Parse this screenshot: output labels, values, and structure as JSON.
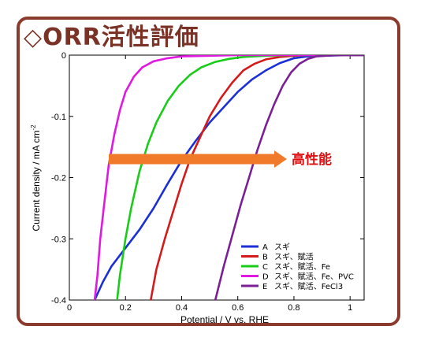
{
  "slide": {
    "title": "◇ORR活性評価",
    "frame_color": "#8b3a2e"
  },
  "chart_data": {
    "type": "line",
    "xlabel": "Potential / V vs. RHE",
    "ylabel": "Current density / mA cm",
    "ylabel_superscript": "-2",
    "xlim": [
      0,
      1.05
    ],
    "ylim": [
      -0.4,
      0
    ],
    "x_ticks": [
      0,
      0.2,
      0.4,
      0.6,
      0.8,
      1
    ],
    "x_tick_labels": [
      "0",
      "0.2",
      "0.4",
      "0.6",
      "0.8",
      "1"
    ],
    "y_ticks": [
      0,
      -0.1,
      -0.2,
      -0.3,
      -0.4
    ],
    "y_tick_labels": [
      "0",
      "-0.1",
      "-0.2",
      "-0.3",
      "-0.4"
    ],
    "grid": false,
    "legend_position": "bottom-right",
    "series": [
      {
        "name": "A",
        "label": "スギ",
        "color": "#1a2fd6",
        "x": [
          0.09,
          0.12,
          0.15,
          0.2,
          0.25,
          0.3,
          0.35,
          0.4,
          0.45,
          0.5,
          0.55,
          0.6,
          0.65,
          0.7,
          0.75,
          0.8,
          0.85,
          0.9,
          1.0,
          1.05
        ],
        "y": [
          -0.4,
          -0.37,
          -0.345,
          -0.315,
          -0.285,
          -0.25,
          -0.21,
          -0.172,
          -0.14,
          -0.11,
          -0.085,
          -0.06,
          -0.04,
          -0.025,
          -0.013,
          -0.005,
          -0.002,
          -0.001,
          0,
          0
        ]
      },
      {
        "name": "B",
        "label": "スギ、賦活",
        "color": "#d41a1a",
        "x": [
          0.29,
          0.31,
          0.34,
          0.37,
          0.4,
          0.43,
          0.47,
          0.5,
          0.54,
          0.58,
          0.62,
          0.66,
          0.7,
          0.75,
          0.8,
          0.85,
          0.9,
          1.0,
          1.05
        ],
        "y": [
          -0.4,
          -0.35,
          -0.3,
          -0.255,
          -0.21,
          -0.17,
          -0.13,
          -0.1,
          -0.07,
          -0.045,
          -0.025,
          -0.014,
          -0.007,
          -0.003,
          -0.001,
          0,
          0,
          0,
          0
        ]
      },
      {
        "name": "C",
        "label": "スギ、賦活、Fe",
        "color": "#18cc18",
        "x": [
          0.17,
          0.18,
          0.2,
          0.22,
          0.25,
          0.28,
          0.31,
          0.35,
          0.39,
          0.43,
          0.47,
          0.52,
          0.57,
          0.62,
          0.7,
          0.8,
          0.9,
          1.0,
          1.05
        ],
        "y": [
          -0.4,
          -0.36,
          -0.3,
          -0.25,
          -0.19,
          -0.145,
          -0.11,
          -0.075,
          -0.05,
          -0.032,
          -0.02,
          -0.011,
          -0.006,
          -0.003,
          -0.001,
          0,
          0,
          0,
          0
        ]
      },
      {
        "name": "D",
        "label": "スギ、賦活、Fe、PVC",
        "color": "#e018e0",
        "x": [
          0.09,
          0.1,
          0.11,
          0.125,
          0.14,
          0.16,
          0.18,
          0.2,
          0.23,
          0.26,
          0.3,
          0.35,
          0.4,
          0.5,
          0.6,
          0.8,
          1.0,
          1.05
        ],
        "y": [
          -0.4,
          -0.36,
          -0.3,
          -0.24,
          -0.18,
          -0.13,
          -0.09,
          -0.06,
          -0.035,
          -0.02,
          -0.01,
          -0.005,
          -0.002,
          -0.001,
          0,
          0,
          0,
          0
        ]
      },
      {
        "name": "E",
        "label": "スギ、賦活、FeCl3",
        "color": "#7a1f96",
        "x": [
          0.52,
          0.55,
          0.58,
          0.61,
          0.64,
          0.67,
          0.7,
          0.73,
          0.76,
          0.79,
          0.82,
          0.85,
          0.88,
          0.95,
          1.05
        ],
        "y": [
          -0.4,
          -0.345,
          -0.295,
          -0.245,
          -0.2,
          -0.155,
          -0.115,
          -0.08,
          -0.05,
          -0.028,
          -0.014,
          -0.006,
          -0.002,
          0,
          0
        ]
      }
    ],
    "annotation": {
      "text": "高性能",
      "arrow_color": "#f07a2a",
      "text_color": "#e01010"
    }
  }
}
